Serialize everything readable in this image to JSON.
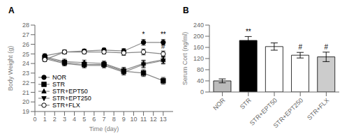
{
  "chart_data": [
    {
      "type": "line",
      "title": "A",
      "x_label": "Time (day)",
      "y_label": "Body Weight (g)",
      "x": [
        1,
        3,
        5,
        7,
        9,
        11,
        13
      ],
      "xlim": [
        0,
        14
      ],
      "xticks": [
        0,
        1,
        2,
        3,
        4,
        5,
        6,
        7,
        8,
        9,
        10,
        11,
        12,
        13
      ],
      "ylim": [
        19,
        28
      ],
      "yticks": [
        19,
        20,
        21,
        22,
        23,
        24,
        25,
        26,
        27,
        28
      ],
      "color": "#888888",
      "grid": false,
      "legend": "lower left",
      "series": [
        {
          "name": "NOR",
          "marker": "circle",
          "values": [
            24.8,
            25.2,
            25.3,
            25.4,
            25.3,
            26.2,
            26.2
          ],
          "errors": [
            0.2,
            0.2,
            0.2,
            0.2,
            0.25,
            0.3,
            0.3
          ]
        },
        {
          "name": "STR",
          "marker": "square",
          "values": [
            24.6,
            24.1,
            23.9,
            23.9,
            23.2,
            23.0,
            22.2
          ],
          "errors": [
            0.25,
            0.25,
            0.25,
            0.25,
            0.3,
            0.35,
            0.35
          ]
        },
        {
          "name": "STR+EPT50",
          "marker": "triangle_up",
          "values": [
            24.7,
            24.2,
            24.1,
            24.0,
            23.3,
            24.0,
            24.4
          ],
          "errors": [
            0.25,
            0.25,
            0.25,
            0.25,
            0.3,
            0.35,
            0.35
          ]
        },
        {
          "name": "STR+EPT250",
          "marker": "triangle_down",
          "values": [
            24.5,
            24.0,
            23.8,
            23.8,
            23.1,
            23.9,
            24.3
          ],
          "errors": [
            0.25,
            0.25,
            0.25,
            0.25,
            0.3,
            0.35,
            0.35
          ]
        },
        {
          "name": "STR+FLX",
          "marker": "open_circle",
          "values": [
            24.4,
            25.2,
            25.2,
            25.2,
            25.1,
            25.2,
            25.0
          ],
          "errors": [
            0.2,
            0.2,
            0.2,
            0.2,
            0.25,
            0.3,
            0.3
          ]
        }
      ],
      "annotations": [
        {
          "x": 11,
          "y": 26.6,
          "text": "*"
        },
        {
          "x": 13,
          "y": 26.65,
          "text": "**"
        },
        {
          "x": 13,
          "y": 25.4,
          "text": "#"
        }
      ]
    },
    {
      "type": "bar",
      "title": "B",
      "y_label": "Serum Cort (ng/ml)",
      "categories": [
        "NOR",
        "STR",
        "STR+EPT50",
        "STR+EPT250",
        "STR+FLX"
      ],
      "values": [
        40,
        185,
        163,
        132,
        126
      ],
      "errors": [
        7,
        14,
        13,
        10,
        17
      ],
      "colors": [
        "#bbbbbb",
        "#000000",
        "#ffffff",
        "#ffffff",
        "#cccccc"
      ],
      "ylim": [
        0,
        240
      ],
      "yticks": [
        0,
        40,
        80,
        120,
        160,
        200,
        240
      ],
      "grid": false,
      "annotations": [
        {
          "x": "STR",
          "y": 203,
          "text": "**"
        },
        {
          "x": "STR+EPT250",
          "y": 147,
          "text": "#"
        },
        {
          "x": "STR+FLX",
          "y": 147,
          "text": "#"
        }
      ]
    }
  ]
}
